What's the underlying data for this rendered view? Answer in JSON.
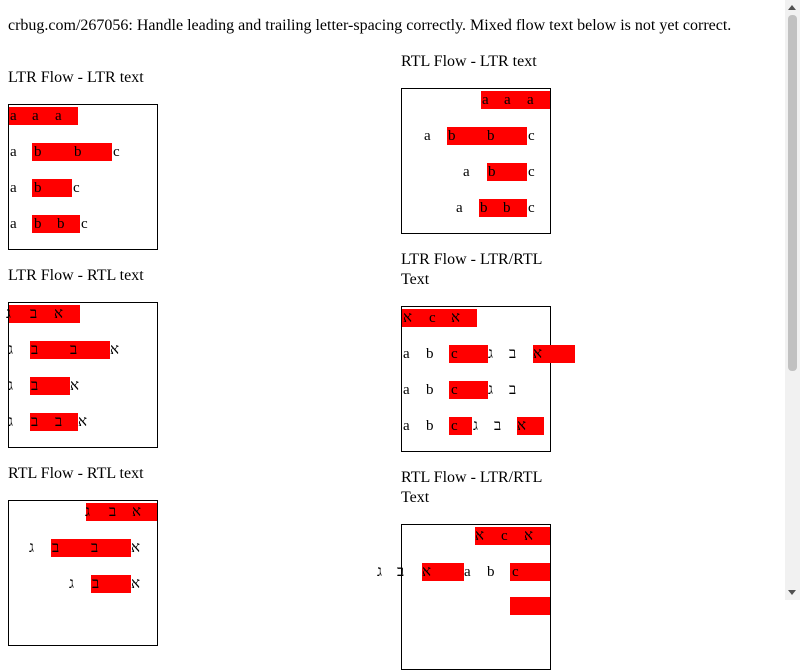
{
  "header": "crbug.com/267056: Handle leading and trailing letter-spacing correctly. Mixed flow text below is not yet correct.",
  "titles": {
    "ltr_ltr": "LTR Flow - LTR text",
    "ltr_rtl": "LTR Flow - RTL text",
    "rtl_rtl": "RTL Flow - RTL text",
    "rtl_ltr": "RTL Flow - LTR text",
    "ltr_mixed_1": "LTR Flow - LTR/RTL",
    "ltr_mixed_2": "Text",
    "rtl_mixed_1": "RTL Flow - LTR/RTL",
    "rtl_mixed_2": "Text"
  },
  "letters": {
    "a": "a",
    "b": "b",
    "c": "c",
    "alef": "א",
    "bet": "ב",
    "gimel": "ג"
  },
  "colors": {
    "highlight": "#ff0000"
  }
}
